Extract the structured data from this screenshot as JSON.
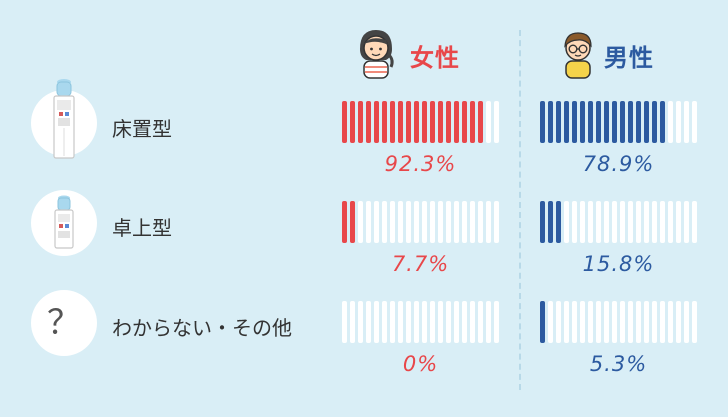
{
  "chart_data": {
    "type": "bar",
    "categories": [
      "床置型",
      "卓上型",
      "わからない・その他"
    ],
    "series": [
      {
        "name": "女性",
        "values": [
          92.3,
          7.7,
          0
        ],
        "labels": [
          "92.3%",
          "7.7%",
          "0%"
        ],
        "color": "#e8474a"
      },
      {
        "name": "男性",
        "values": [
          78.9,
          15.8,
          5.3
        ],
        "labels": [
          "78.9%",
          "15.8%",
          "5.3%"
        ],
        "color": "#2c5aa0"
      }
    ],
    "unit": "%",
    "ylim": [
      0,
      100
    ],
    "segments_per_bar": 20,
    "empty_segment_color": "#ffffff"
  },
  "icons": {
    "female": "woman-face-icon",
    "male": "man-glasses-face-icon",
    "floor_type": "floor-water-dispenser-icon",
    "desktop_type": "desktop-water-dispenser-icon",
    "unknown": "question-mark-icon"
  },
  "question_mark": "？"
}
